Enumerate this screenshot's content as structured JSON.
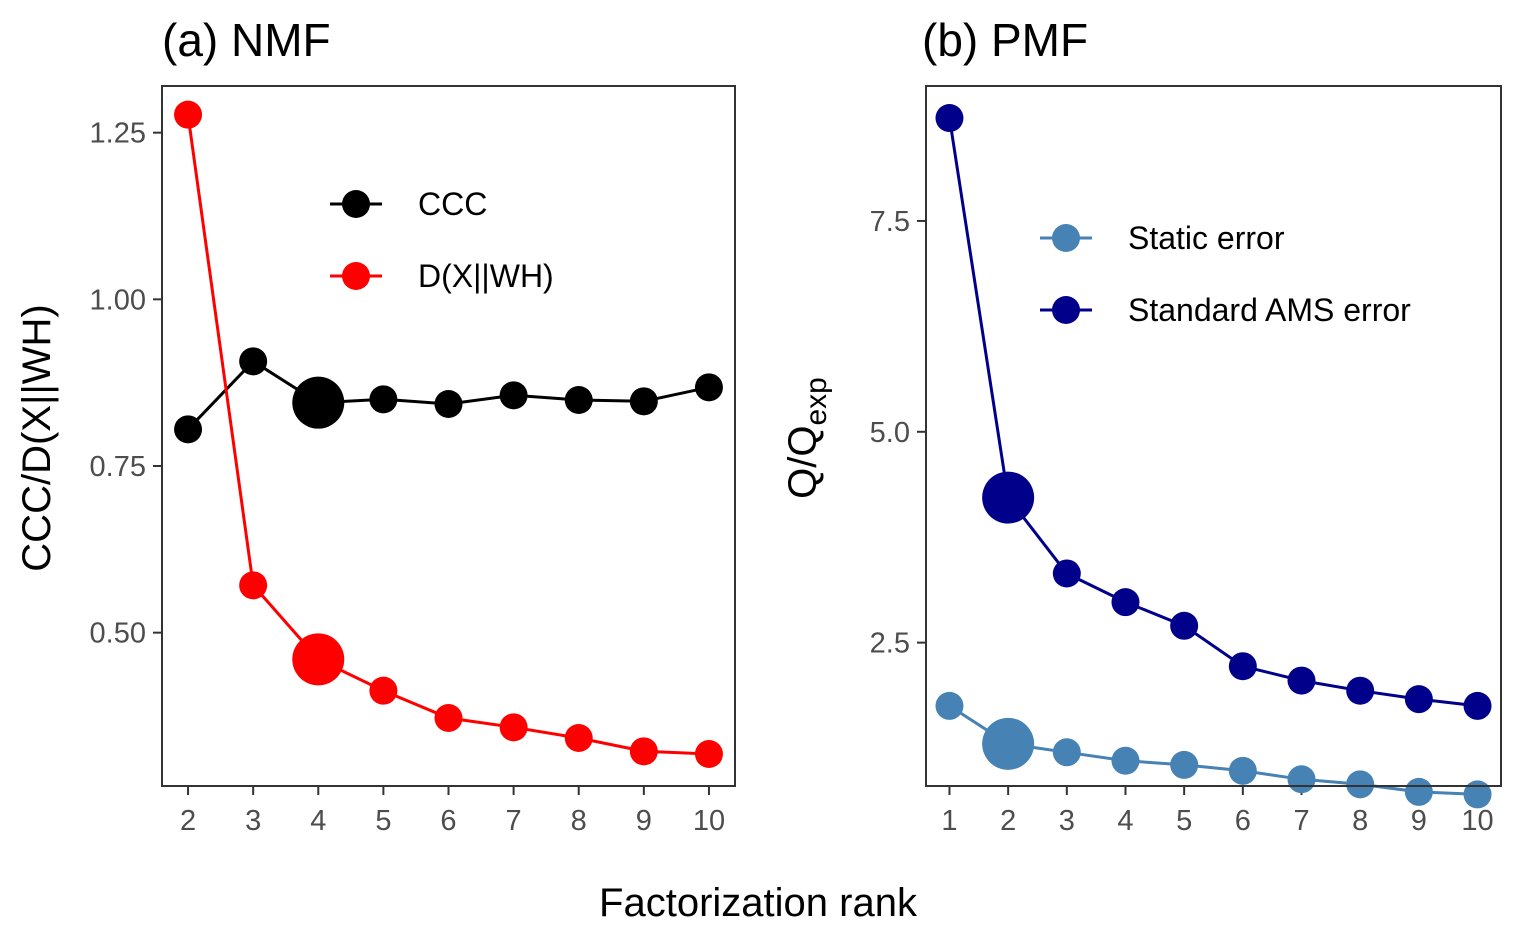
{
  "shared": {
    "xlabel": "Factorization rank"
  },
  "chart_data": [
    {
      "type": "line",
      "title": "(a) NMF",
      "ylabel": "CCC/D(X||WH)",
      "ylim": [
        0.27,
        1.32
      ],
      "xlim": [
        1.6,
        10.4
      ],
      "x_ticks": [
        2,
        3,
        4,
        5,
        6,
        7,
        8,
        9,
        10
      ],
      "y_ticks": [
        {
          "value": 0.5,
          "label": "0.50"
        },
        {
          "value": 0.75,
          "label": "0.75"
        },
        {
          "value": 1.0,
          "label": "1.00"
        },
        {
          "value": 1.25,
          "label": "1.25"
        }
      ],
      "legend_position": "top-right",
      "highlight_x": 4,
      "x": [
        2,
        3,
        4,
        5,
        6,
        7,
        8,
        9,
        10
      ],
      "series": [
        {
          "name": "CCC",
          "color": "#000000",
          "values": [
            0.805,
            0.907,
            0.845,
            0.85,
            0.843,
            0.856,
            0.849,
            0.847,
            0.868
          ]
        },
        {
          "name": "D(X||WH)",
          "color": "#ff0000",
          "values": [
            1.277,
            0.571,
            0.46,
            0.413,
            0.372,
            0.358,
            0.342,
            0.322,
            0.318
          ]
        }
      ]
    },
    {
      "type": "line",
      "title": "(b) PMF",
      "ylabel": "Q/Q",
      "ylabel_subscript": "exp",
      "ylim": [
        0.8,
        9.1
      ],
      "xlim": [
        0.6,
        10.4
      ],
      "x_ticks": [
        1,
        2,
        3,
        4,
        5,
        6,
        7,
        8,
        9,
        10
      ],
      "y_ticks": [
        {
          "value": 2.5,
          "label": "2.5"
        },
        {
          "value": 5.0,
          "label": "5.0"
        },
        {
          "value": 7.5,
          "label": "7.5"
        }
      ],
      "legend_position": "top-right",
      "highlight_x": 2,
      "x": [
        1,
        2,
        3,
        4,
        5,
        6,
        7,
        8,
        9,
        10
      ],
      "series": [
        {
          "name": "Static error",
          "color": "#4682b4",
          "values": [
            1.75,
            1.3,
            1.2,
            1.1,
            1.05,
            0.98,
            0.88,
            0.82,
            0.73,
            0.7
          ]
        },
        {
          "name": "Standard AMS error",
          "color": "#00008b",
          "values": [
            8.72,
            4.22,
            3.32,
            2.98,
            2.7,
            2.22,
            2.05,
            1.93,
            1.83,
            1.75
          ]
        }
      ]
    }
  ]
}
